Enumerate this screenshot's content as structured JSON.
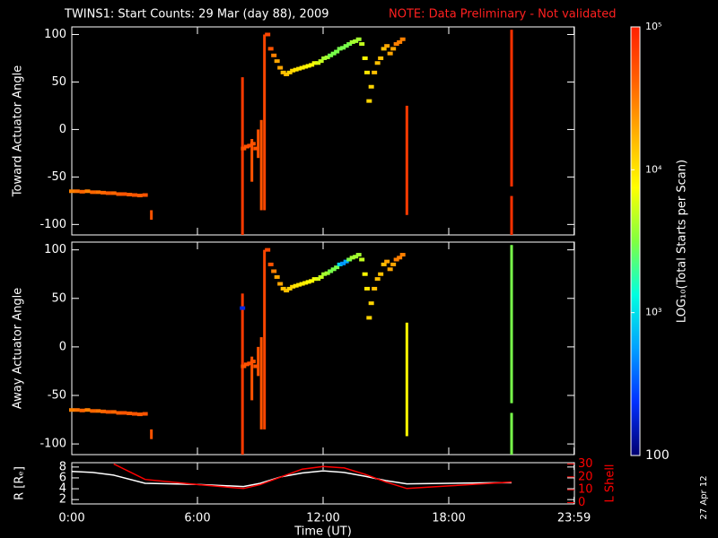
{
  "chart_data": [
    {
      "type": "scatter",
      "title": "TWINS1: Start Counts: 29 Mar (day  88), 2009",
      "note": "NOTE: Data Preliminary - Not validated",
      "ylabel": "Toward Actuator Angle",
      "xlim": [
        0,
        24
      ],
      "ylim": [
        -111,
        108
      ],
      "yticks": [
        -100,
        -50,
        0,
        50,
        100
      ],
      "points": {
        "x": [
          0,
          0.25,
          0.5,
          0.75,
          1,
          1.25,
          1.5,
          1.75,
          2,
          2.25,
          2.5,
          2.75,
          3,
          3.25,
          3.5,
          8.2,
          8.35,
          8.5,
          8.65,
          8.8,
          9.35,
          9.5,
          9.65,
          9.8,
          9.95,
          10.1,
          10.25,
          10.4,
          10.55,
          10.7,
          10.85,
          11,
          11.15,
          11.3,
          11.45,
          11.6,
          11.75,
          11.9,
          12.05,
          12.2,
          12.35,
          12.5,
          12.65,
          12.8,
          12.95,
          13.1,
          13.25,
          13.4,
          13.55,
          13.7,
          13.85,
          14,
          14.1,
          14.2,
          14.3,
          14.45,
          14.6,
          14.75,
          14.9,
          15.05,
          15.2,
          15.35,
          15.5,
          15.65,
          15.8
        ],
        "values": [
          -65,
          -65,
          -65.5,
          -65,
          -66,
          -66,
          -66.5,
          -67,
          -67,
          -68,
          -68,
          -68.5,
          -69,
          -69.5,
          -69,
          -20,
          -18,
          -17,
          -15,
          -20,
          100,
          85,
          78,
          72,
          65,
          60,
          58,
          60,
          62,
          63,
          64,
          65,
          66,
          67,
          68,
          70,
          70,
          72,
          75,
          76,
          78,
          80,
          82,
          85,
          86,
          88,
          90,
          92,
          93,
          95,
          90,
          75,
          60,
          30,
          45,
          60,
          70,
          75,
          85,
          88,
          80,
          85,
          90,
          92,
          95
        ],
        "z": [
          30000,
          35000,
          40000,
          30000,
          40000,
          35000,
          40000,
          45000,
          40000,
          45000,
          50000,
          45000,
          50000,
          45000,
          50000,
          50000,
          50000,
          55000,
          50000,
          50000,
          60000,
          50000,
          30000,
          20000,
          20000,
          15000,
          15000,
          12000,
          12000,
          10000,
          10000,
          9000,
          9000,
          8000,
          8000,
          7000,
          6000,
          5000,
          4000,
          4000,
          3000,
          3000,
          3000,
          3000,
          3000,
          3000,
          3000,
          4000,
          4000,
          4000,
          5000,
          8000,
          10000,
          12000,
          12000,
          15000,
          15000,
          15000,
          15000,
          20000,
          20000,
          20000,
          30000,
          30000,
          30000
        ]
      },
      "spikes": {
        "x": [
          3.8,
          8.15,
          8.6,
          8.9,
          9.05,
          9.2,
          16,
          21,
          21
        ],
        "low": [
          -95,
          -111,
          -55,
          -30,
          -85,
          -85,
          -90,
          -60,
          -111
        ],
        "high": [
          -85,
          55,
          -10,
          0,
          10,
          100,
          25,
          105,
          -70
        ],
        "z": [
          50000,
          70000,
          50000,
          50000,
          50000,
          60000,
          70000,
          80000,
          80000
        ]
      }
    },
    {
      "type": "scatter",
      "ylabel": "Away Actuator Angle",
      "xlim": [
        0,
        24
      ],
      "ylim": [
        -111,
        108
      ],
      "yticks": [
        -100,
        -50,
        0,
        50,
        100
      ],
      "points": {
        "x": [
          0,
          0.25,
          0.5,
          0.75,
          1,
          1.25,
          1.5,
          1.75,
          2,
          2.25,
          2.5,
          2.75,
          3,
          3.25,
          3.5,
          8.15,
          8.2,
          8.35,
          8.5,
          8.65,
          8.8,
          9.35,
          9.5,
          9.65,
          9.8,
          9.95,
          10.1,
          10.25,
          10.4,
          10.55,
          10.7,
          10.85,
          11,
          11.15,
          11.3,
          11.45,
          11.6,
          11.75,
          11.9,
          12.05,
          12.2,
          12.35,
          12.5,
          12.65,
          12.8,
          12.95,
          13.1,
          13.25,
          13.4,
          13.55,
          13.7,
          13.85,
          14,
          14.1,
          14.2,
          14.3,
          14.45,
          14.6,
          14.75,
          14.9,
          15.05,
          15.2,
          15.35,
          15.5,
          15.65,
          15.8
        ],
        "values": [
          -65,
          -65,
          -65.5,
          -65,
          -66,
          -66,
          -66.5,
          -67,
          -67,
          -68,
          -68,
          -68.5,
          -69,
          -69.5,
          -69,
          40,
          -20,
          -18,
          -17,
          -15,
          -20,
          100,
          85,
          78,
          72,
          65,
          60,
          58,
          60,
          62,
          63,
          64,
          65,
          66,
          67,
          68,
          70,
          70,
          72,
          75,
          76,
          78,
          80,
          82,
          85,
          86,
          88,
          90,
          92,
          93,
          95,
          90,
          75,
          60,
          30,
          45,
          60,
          70,
          75,
          85,
          88,
          80,
          85,
          90,
          92,
          95
        ],
        "z": [
          30000,
          35000,
          40000,
          30000,
          40000,
          35000,
          40000,
          45000,
          40000,
          45000,
          50000,
          45000,
          50000,
          45000,
          50000,
          200,
          50000,
          50000,
          55000,
          50000,
          50000,
          60000,
          50000,
          30000,
          20000,
          20000,
          15000,
          15000,
          12000,
          12000,
          10000,
          10000,
          9000,
          9000,
          8000,
          8000,
          7000,
          6000,
          5000,
          4000,
          4000,
          3000,
          3000,
          3000,
          900,
          500,
          600,
          3000,
          4000,
          4000,
          4000,
          5000,
          8000,
          10000,
          12000,
          12000,
          15000,
          15000,
          15000,
          15000,
          20000,
          20000,
          20000,
          30000,
          30000,
          30000
        ]
      },
      "spikes": {
        "x": [
          3.8,
          8.15,
          8.6,
          8.9,
          9.05,
          9.2,
          16,
          21,
          21
        ],
        "low": [
          -95,
          -111,
          -55,
          -30,
          -85,
          -85,
          -92,
          -58,
          -111
        ],
        "high": [
          -85,
          55,
          -10,
          0,
          10,
          100,
          25,
          105,
          -68
        ],
        "z": [
          50000,
          70000,
          50000,
          50000,
          50000,
          60000,
          8000,
          3000,
          3000
        ]
      }
    },
    {
      "type": "line",
      "ylabel": "R [Rₑ]",
      "y2label": "L Shell",
      "xlabel": "Time (UT)",
      "xlim": [
        0,
        24
      ],
      "xticks": [
        {
          "value": 0,
          "label": "0:00"
        },
        {
          "value": 6,
          "label": "6:00"
        },
        {
          "value": 12,
          "label": "12:00"
        },
        {
          "value": 18,
          "label": "18:00"
        },
        {
          "value": 23.983,
          "label": "23:59"
        }
      ],
      "ylim": [
        1.2,
        8.8
      ],
      "yticks": [
        2,
        4,
        6,
        8
      ],
      "y2lim": [
        -1,
        31
      ],
      "y2ticks": [
        0,
        10,
        20,
        30
      ],
      "y2color": "#ff0000",
      "x": [
        0,
        1,
        2,
        3.5,
        6,
        8.2,
        9,
        10,
        11,
        12,
        13,
        14,
        15,
        16,
        18,
        20,
        21
      ],
      "series": [
        {
          "color": "#ffffff",
          "values": [
            7.2,
            7.0,
            6.5,
            5.0,
            4.8,
            4.4,
            5.0,
            6.2,
            6.9,
            7.3,
            7.0,
            6.3,
            5.5,
            4.9,
            5.0,
            5.1,
            5.1
          ]
        },
        {
          "color": "#ff0000",
          "axis": "y2",
          "values": [
            null,
            null,
            30,
            18,
            14,
            11,
            14,
            20,
            26,
            28,
            27,
            22,
            16,
            11,
            13,
            15,
            16
          ]
        }
      ]
    },
    {
      "type": "colorbar",
      "label": "LOG₁₀(Total Starts per Scan)",
      "annotation": "27 Apr 12",
      "log": true,
      "zlim": [
        100,
        100000
      ],
      "zticks": [
        {
          "value": 100,
          "label": "100"
        },
        {
          "value": 1000,
          "label": "10³"
        },
        {
          "value": 10000,
          "label": "10⁴"
        },
        {
          "value": 100000,
          "label": "10⁵"
        }
      ],
      "colors": [
        "#000070",
        "#0030ff",
        "#00a0ff",
        "#00ffe0",
        "#80ff40",
        "#ffff00",
        "#ffb000",
        "#ff6000",
        "#ff2000"
      ]
    }
  ]
}
